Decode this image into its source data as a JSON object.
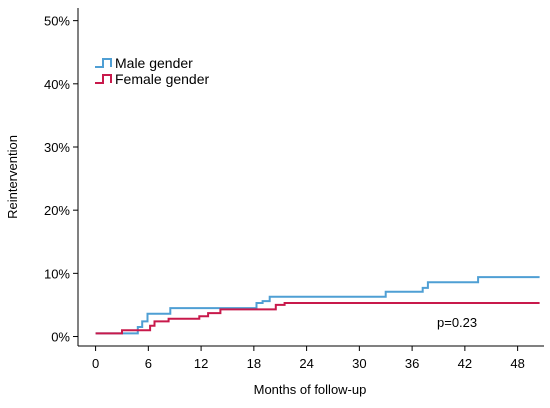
{
  "chart_data": {
    "type": "line",
    "step": true,
    "xlabel": "Months of follow-up",
    "ylabel": "Reintervention",
    "xlim": [
      -2,
      51
    ],
    "ylim": [
      -1.5,
      52
    ],
    "x_ticks": [
      0,
      6,
      12,
      18,
      24,
      30,
      36,
      42,
      48
    ],
    "y_ticks": [
      0,
      10,
      20,
      30,
      40,
      50
    ],
    "y_tick_suffix": "%",
    "grid": false,
    "legend_position": "top-left",
    "annotation": "p=0.23",
    "series": [
      {
        "name": "Male gender",
        "color": "#4f9fd4",
        "points": [
          [
            0,
            0.5
          ],
          [
            4.8,
            0.5
          ],
          [
            4.8,
            1.5
          ],
          [
            5.3,
            1.5
          ],
          [
            5.3,
            2.4
          ],
          [
            5.9,
            2.4
          ],
          [
            5.9,
            3.6
          ],
          [
            8.5,
            3.6
          ],
          [
            8.5,
            4.5
          ],
          [
            18.3,
            4.5
          ],
          [
            18.3,
            5.3
          ],
          [
            19.0,
            5.3
          ],
          [
            19.0,
            5.6
          ],
          [
            19.8,
            5.6
          ],
          [
            19.8,
            6.3
          ],
          [
            33.0,
            6.3
          ],
          [
            33.0,
            7.1
          ],
          [
            37.2,
            7.1
          ],
          [
            37.2,
            7.7
          ],
          [
            37.8,
            7.7
          ],
          [
            37.8,
            8.6
          ],
          [
            43.5,
            8.6
          ],
          [
            43.5,
            9.4
          ],
          [
            50.5,
            9.4
          ]
        ]
      },
      {
        "name": "Female gender",
        "color": "#c8194b",
        "points": [
          [
            0,
            0.5
          ],
          [
            3.0,
            0.5
          ],
          [
            3.0,
            1.0
          ],
          [
            6.2,
            1.0
          ],
          [
            6.2,
            1.7
          ],
          [
            6.7,
            1.7
          ],
          [
            6.7,
            2.4
          ],
          [
            8.3,
            2.4
          ],
          [
            8.3,
            2.8
          ],
          [
            11.8,
            2.8
          ],
          [
            11.8,
            3.2
          ],
          [
            12.8,
            3.2
          ],
          [
            12.8,
            3.7
          ],
          [
            14.2,
            3.7
          ],
          [
            14.2,
            4.3
          ],
          [
            20.5,
            4.3
          ],
          [
            20.5,
            5.0
          ],
          [
            21.5,
            5.0
          ],
          [
            21.5,
            5.3
          ],
          [
            50.5,
            5.3
          ]
        ]
      }
    ]
  }
}
